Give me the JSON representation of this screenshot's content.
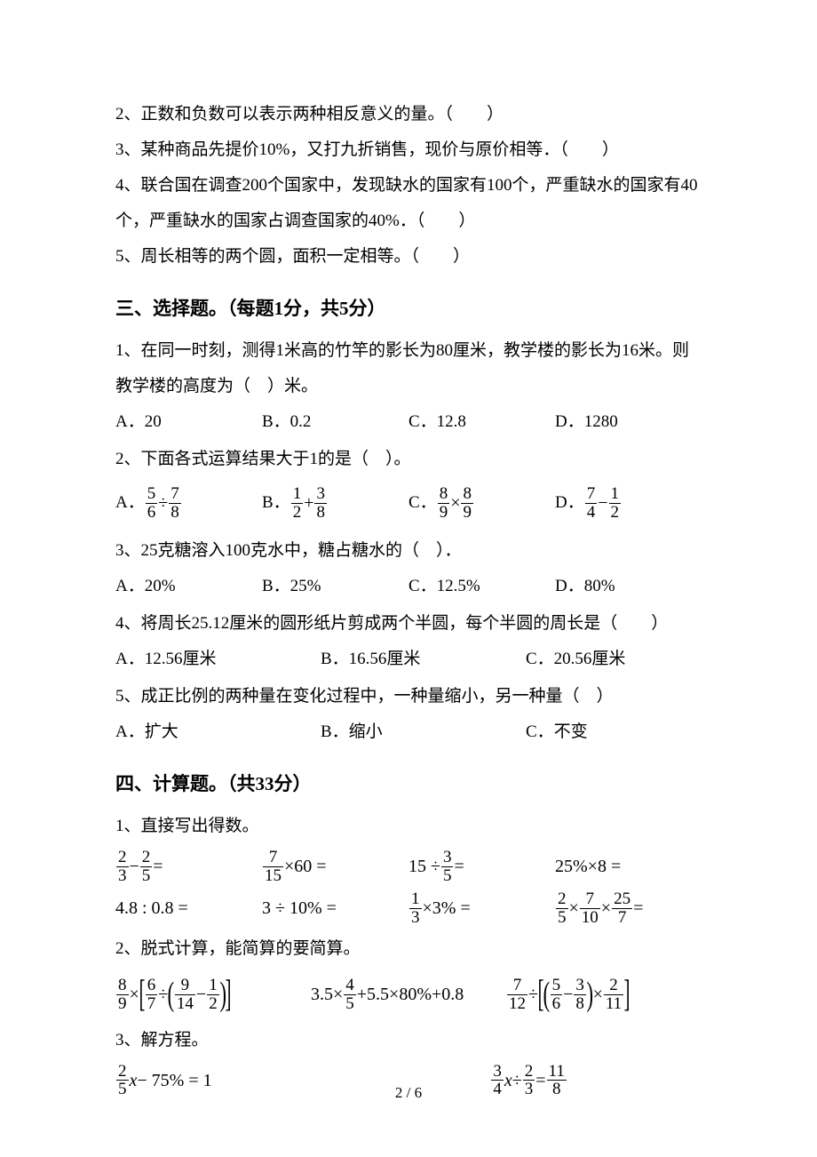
{
  "judge": {
    "q2": "2、正数和负数可以表示两种相反意义的量。（　　）",
    "q3": "3、某种商品先提价10%，又打九折销售，现价与原价相等．（　　）",
    "q4a": "4、联合国在调查200个国家中，发现缺水的国家有100个，严重缺水的国家有40",
    "q4b": "个，严重缺水的国家占调查国家的40%．（　　）",
    "q5": "5、周长相等的两个圆，面积一定相等。（　　）"
  },
  "section3": {
    "header": "三、选择题。（每题1分，共5分）",
    "q1a": "1、在同一时刻，测得1米高的竹竿的影长为80厘米，教学楼的影长为16米。则",
    "q1b": "教学楼的高度为（　）米。",
    "q1opts": {
      "a": "A．20",
      "b": "B．0.2",
      "c": "C．12.8",
      "d": "D．1280"
    },
    "q2": "2、下面各式运算结果大于1的是（　）。",
    "q2opts": {
      "a_pre": "A．",
      "b_pre": "B．",
      "c_pre": "C．",
      "d_pre": "D．"
    },
    "q2f": {
      "a": {
        "n1": "5",
        "d1": "6",
        "op": "÷",
        "n2": "7",
        "d2": "8"
      },
      "b": {
        "n1": "1",
        "d1": "2",
        "op": "+",
        "n2": "3",
        "d2": "8"
      },
      "c": {
        "n1": "8",
        "d1": "9",
        "op": "×",
        "n2": "8",
        "d2": "9"
      },
      "d": {
        "n1": "7",
        "d1": "4",
        "op": "−",
        "n2": "1",
        "d2": "2"
      }
    },
    "q3": "3、25克糖溶入100克水中，糖占糖水的（　）．",
    "q3opts": {
      "a": "A．20%",
      "b": "B．25%",
      "c": "C．12.5%",
      "d": "D．80%"
    },
    "q4": "4、将周长25.12厘米的圆形纸片剪成两个半圆，每个半圆的周长是（　　）",
    "q4opts": {
      "a": "A．12.56厘米",
      "b": "B．16.56厘米",
      "c": "C．20.56厘米"
    },
    "q5": "5、成正比例的两种量在变化过程中，一种量缩小，另一种量（　）",
    "q5opts": {
      "a": "A．扩大",
      "b": "B．缩小",
      "c": "C．不变"
    }
  },
  "section4": {
    "header": "四、计算题。（共33分）",
    "q1": "1、直接写出得数。",
    "r1": {
      "a": {
        "n1": "2",
        "d1": "3",
        "op": "−",
        "n2": "2",
        "d2": "5",
        "tail": " ="
      },
      "b": {
        "n1": "7",
        "d1": "15",
        "op": "×",
        "plain": "60 ="
      },
      "c": {
        "plain_pre": "15 ÷",
        "n1": "3",
        "d1": "5",
        "tail": " ="
      },
      "d": {
        "plain": "25%×8 ="
      }
    },
    "r2": {
      "a": "4.8 : 0.8 =",
      "b": "3 ÷ 10% =",
      "c": {
        "n1": "1",
        "d1": "3",
        "op": "×",
        "plain": "3% ="
      },
      "d": {
        "n1": "2",
        "d1": "5",
        "op1": "×",
        "n2": "7",
        "d2": "10",
        "op2": "×",
        "n3": "25",
        "d3": "7",
        "tail": " ="
      }
    },
    "q2": "2、脱式计算，能简算的要简算。",
    "r3": {
      "a": {
        "n1": "8",
        "d1": "9",
        "n2": "6",
        "d2": "7",
        "n3": "9",
        "d3": "14",
        "n4": "1",
        "d4": "2"
      },
      "b": {
        "pre": "3.5×",
        "n1": "4",
        "d1": "5",
        "mid": "+5.5×80%+0.8"
      },
      "c": {
        "n1": "7",
        "d1": "12",
        "n2": "5",
        "d2": "6",
        "n3": "3",
        "d3": "8",
        "n4": "2",
        "d4": "11"
      }
    },
    "q3": "3、解方程。",
    "eq1": {
      "n1": "2",
      "d1": "5",
      "var": "x",
      "mid": " − 75% = 1"
    },
    "eq2": {
      "n1": "3",
      "d1": "4",
      "var": "x",
      "mid": " ÷ ",
      "n2": "2",
      "d2": "3",
      "eq": " = ",
      "n3": "11",
      "d3": "8"
    }
  },
  "page": {
    "cur": "2",
    "sep": " / ",
    "total": "6"
  },
  "colors": {
    "text": "#000000",
    "bg": "#ffffff"
  }
}
